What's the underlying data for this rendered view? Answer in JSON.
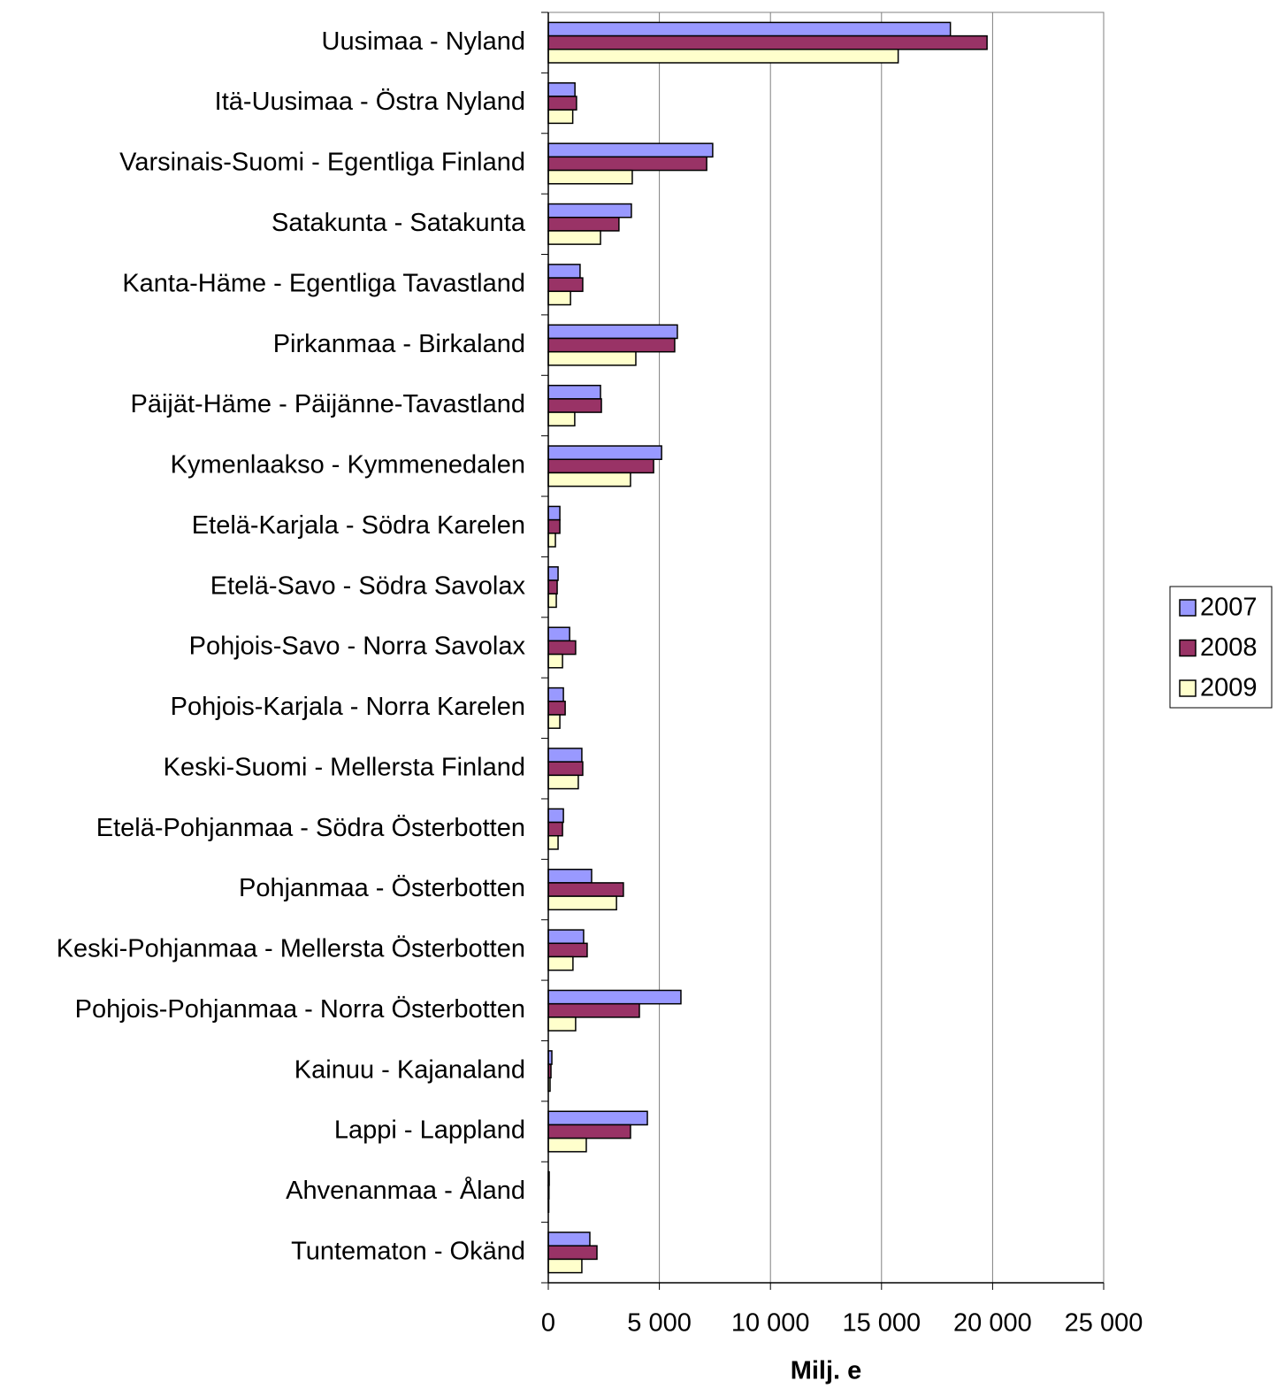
{
  "chart_data": {
    "type": "hbar",
    "x_label": "Milj. e",
    "categories": [
      "Uusimaa - Nyland",
      "Itä-Uusimaa - Östra Nyland",
      "Varsinais-Suomi - Egentliga Finland",
      "Satakunta - Satakunta",
      "Kanta-Häme - Egentliga Tavastland",
      "Pirkanmaa - Birkaland",
      "Päijät-Häme - Päijänne-Tavastland",
      "Kymenlaakso - Kymmenedalen",
      "Etelä-Karjala - Södra Karelen",
      "Etelä-Savo - Södra Savolax",
      "Pohjois-Savo - Norra Savolax",
      "Pohjois-Karjala - Norra Karelen",
      "Keski-Suomi - Mellersta Finland",
      "Etelä-Pohjanmaa - Södra Österbotten",
      "Pohjanmaa - Österbotten",
      "Keski-Pohjanmaa - Mellersta Österbotten",
      "Pohjois-Pohjanmaa - Norra Österbotten",
      "Kainuu - Kajanaland",
      "Lappi - Lappland",
      "Ahvenanmaa - Åland",
      "Tuntematon - Okänd"
    ],
    "series": [
      {
        "name": "2007",
        "color": "#9999ff",
        "values": [
          18100,
          1200,
          7400,
          3740,
          1430,
          5810,
          2350,
          5100,
          520,
          440,
          960,
          680,
          1510,
          680,
          1950,
          1590,
          5970,
          160,
          4460,
          40,
          1870
        ]
      },
      {
        "name": "2008",
        "color": "#993366",
        "values": [
          19750,
          1270,
          7130,
          3180,
          1550,
          5690,
          2390,
          4740,
          520,
          400,
          1230,
          760,
          1550,
          640,
          3380,
          1750,
          4100,
          120,
          3700,
          30,
          2190
        ]
      },
      {
        "name": "2009",
        "color": "#ffffcc",
        "values": [
          15750,
          1100,
          3780,
          2350,
          1000,
          3940,
          1190,
          3700,
          320,
          360,
          640,
          520,
          1350,
          440,
          3070,
          1110,
          1230,
          80,
          1710,
          20,
          1510
        ]
      }
    ],
    "xlim": [
      0,
      25000
    ],
    "xticks": [
      0,
      {
        "value": 5000,
        "label": "5 000"
      },
      {
        "value": 10000,
        "label": "10 000"
      },
      {
        "value": 15000,
        "label": "15 000"
      },
      {
        "value": 20000,
        "label": "20 000"
      },
      {
        "value": 25000,
        "label": "25 000"
      }
    ],
    "grid": true,
    "legend": "right"
  }
}
